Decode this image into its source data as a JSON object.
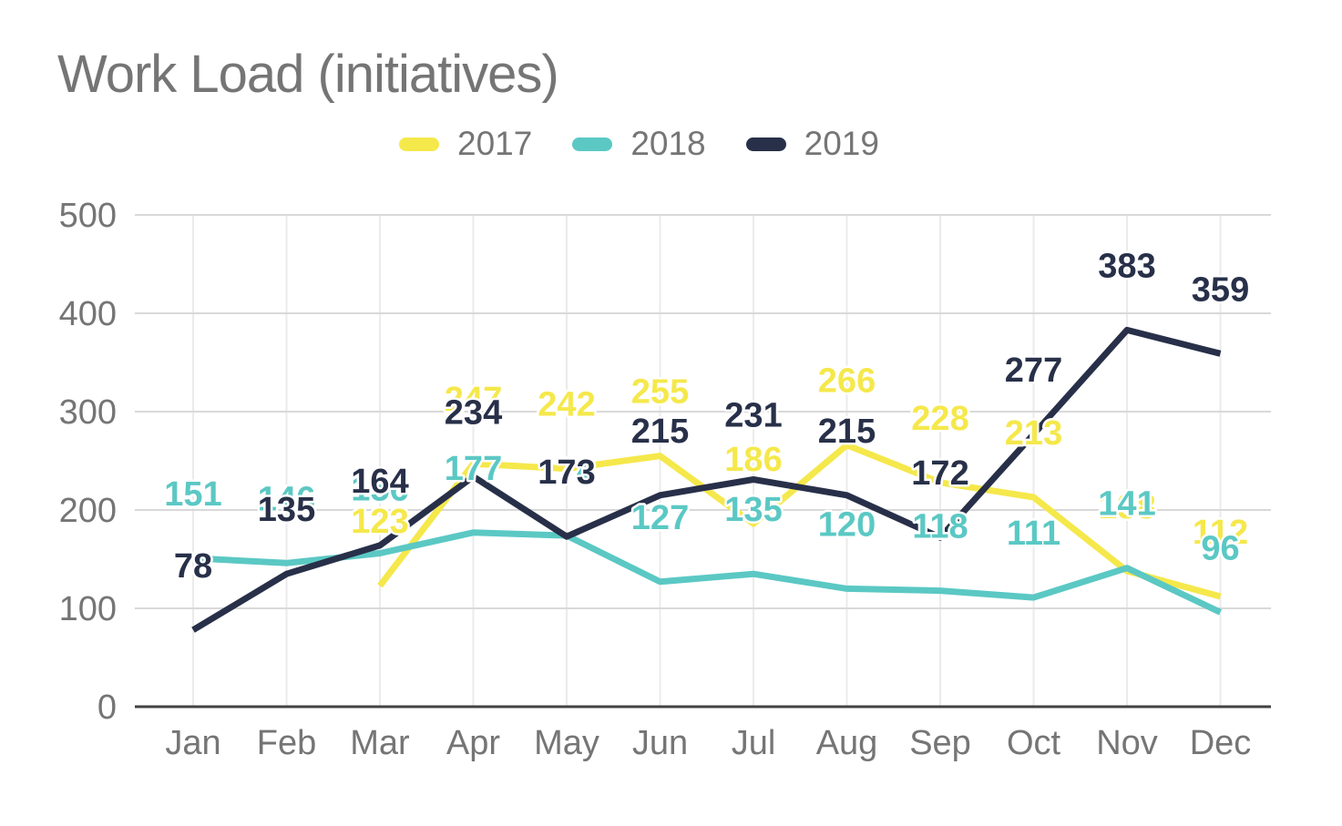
{
  "title": "Work Load (initiatives)",
  "colors": {
    "background": "#ffffff",
    "text_gray": "#757575",
    "gridline": "#d9d9d9",
    "vertical_gridline": "#ebebeb",
    "axis_line": "#424242",
    "series_2017": "#f5e84b",
    "series_2018": "#5bc8c4",
    "series_2019": "#283049"
  },
  "chart_data": {
    "type": "line",
    "title": "Work Load (initiatives)",
    "categories": [
      "Jan",
      "Feb",
      "Mar",
      "Apr",
      "May",
      "Jun",
      "Jul",
      "Aug",
      "Sep",
      "Oct",
      "Nov",
      "Dec"
    ],
    "series": [
      {
        "name": "2017",
        "color": "#f5e84b",
        "values": [
          null,
          null,
          123,
          247,
          242,
          255,
          186,
          266,
          228,
          213,
          138,
          112
        ]
      },
      {
        "name": "2018",
        "color": "#5bc8c4",
        "values": [
          151,
          146,
          156,
          177,
          174,
          127,
          135,
          120,
          118,
          111,
          141,
          96
        ]
      },
      {
        "name": "2019",
        "color": "#283049",
        "values": [
          78,
          135,
          164,
          234,
          173,
          215,
          231,
          215,
          172,
          277,
          383,
          359
        ]
      }
    ],
    "xlabel": "",
    "ylabel": "",
    "ylim": [
      0,
      500
    ],
    "yticks": [
      0,
      100,
      200,
      300,
      400,
      500
    ],
    "grid": true,
    "legend_position": "top",
    "data_labels_shown": true
  }
}
